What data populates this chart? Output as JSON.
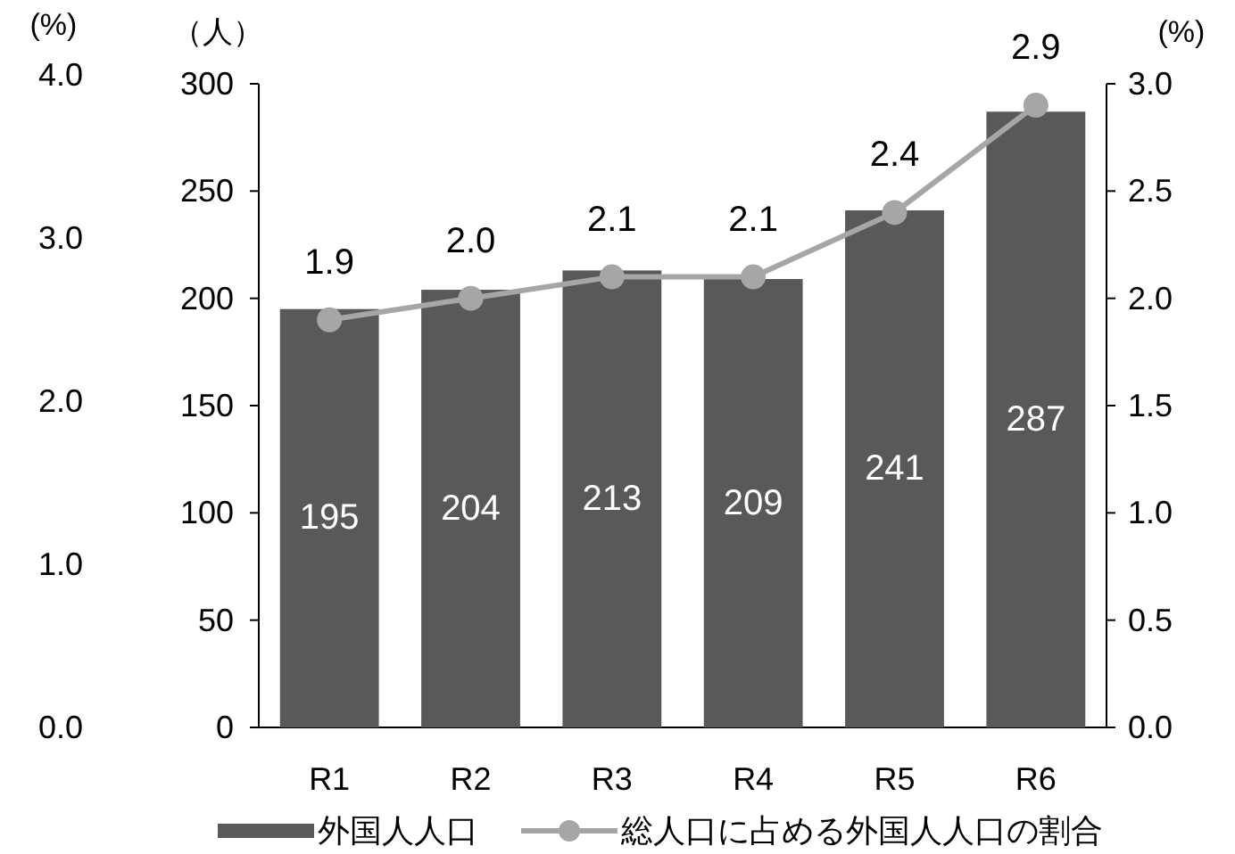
{
  "chart_data": {
    "type": "bar",
    "categories": [
      "R1",
      "R2",
      "R3",
      "R4",
      "R5",
      "R6"
    ],
    "series": [
      {
        "name": "外国人人口",
        "color": "#595959",
        "values": [
          195,
          204,
          213,
          209,
          241,
          287
        ]
      },
      {
        "name": "総人口に占める外国人人口の割合",
        "type": "line",
        "axis": "y2",
        "color": "#a6a6a6",
        "marker": "circle",
        "values": [
          1.9,
          2.0,
          2.1,
          2.1,
          2.4,
          2.9
        ],
        "value_labels": [
          "1.9",
          "2.0",
          "2.1",
          "2.1",
          "2.4",
          "2.9"
        ]
      }
    ],
    "ylim": [
      0,
      300
    ],
    "yticks": [
      0,
      50,
      100,
      150,
      200,
      250,
      300
    ],
    "ylabel": "（人）",
    "y2lim": [
      0,
      3
    ],
    "y2ticks": [
      {
        "value": 0,
        "label": "0.0"
      },
      {
        "value": 0.5,
        "label": "0.5"
      },
      {
        "value": 1,
        "label": "1.0"
      },
      {
        "value": 1.5,
        "label": "1.5"
      },
      {
        "value": 2,
        "label": "2.0"
      },
      {
        "value": 2.5,
        "label": "2.5"
      },
      {
        "value": 3,
        "label": "3.0"
      }
    ],
    "y2label": "(%)",
    "y3lim": [
      0,
      4
    ],
    "y3ticks": [
      {
        "value": 0,
        "label": "0.0"
      },
      {
        "value": 1,
        "label": "1.0"
      },
      {
        "value": 2,
        "label": "2.0"
      },
      {
        "value": 3,
        "label": "3.0"
      },
      {
        "value": 4,
        "label": "4.0"
      }
    ],
    "y3label": "(%)",
    "data_labels": true,
    "legend": "bottom"
  }
}
